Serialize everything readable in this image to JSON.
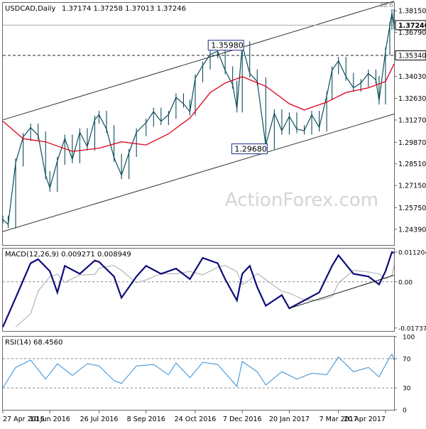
{
  "chart_data": {
    "type": "ohlc",
    "header": {
      "symbol": "USDCAD,Daily",
      "ohlc": "1.37174 1.37258 1.37013 1.37246"
    },
    "watermark": "ActionForex.com",
    "price_axis": {
      "ylim": [
        1.234,
        1.3865
      ],
      "ticks": [
        "1.38150",
        "1.36790",
        "1.35340",
        "1.34030",
        "1.32630",
        "1.31270",
        "1.29870",
        "1.28510",
        "1.27150",
        "1.25750",
        "1.24390"
      ],
      "last_price": "1.37246",
      "level_label": "1.35340",
      "level_value": 1.3534,
      "top_tag": "38.6"
    },
    "annotations": [
      {
        "text": "1.35980",
        "x": "7 Dec 2016",
        "value": 1.3598
      },
      {
        "text": "1.29680",
        "x": "29 Dec 2016",
        "value": 1.2968
      }
    ],
    "channel": {
      "upper": [
        [
          "27 Apr 2016",
          1.3128
        ],
        [
          "28 Apr 2017",
          1.3875
        ]
      ],
      "lower": [
        [
          "27 Apr 2016",
          1.2425
        ],
        [
          "28 Apr 2017",
          1.3165
        ]
      ]
    },
    "x_axis": {
      "ticks": [
        "27 Apr 2016",
        "10 Jun 2016",
        "26 Jul 2016",
        "8 Sep 2016",
        "24 Oct 2016",
        "7 Dec 2016",
        "20 Jan 2017",
        "7 Mar 2017",
        "20 Apr 2017"
      ]
    },
    "price_series": [
      {
        "x": "27 Apr 2016",
        "value": 1.25
      },
      {
        "x": "2 May 2016",
        "value": 1.247
      },
      {
        "x": "9 May 2016",
        "value": 1.286
      },
      {
        "x": "16 May 2016",
        "value": 1.302
      },
      {
        "x": "23 May 2016",
        "value": 1.308
      },
      {
        "x": "30 May 2016",
        "value": 1.303
      },
      {
        "x": "6 Jun 2016",
        "value": 1.278
      },
      {
        "x": "10 Jun 2016",
        "value": 1.27
      },
      {
        "x": "17 Jun 2016",
        "value": 1.287
      },
      {
        "x": "24 Jun 2016",
        "value": 1.301
      },
      {
        "x": "1 Jul 2016",
        "value": 1.288
      },
      {
        "x": "8 Jul 2016",
        "value": 1.305
      },
      {
        "x": "15 Jul 2016",
        "value": 1.296
      },
      {
        "x": "22 Jul 2016",
        "value": 1.313
      },
      {
        "x": "26 Jul 2016",
        "value": 1.316
      },
      {
        "x": "2 Aug 2016",
        "value": 1.307
      },
      {
        "x": "9 Aug 2016",
        "value": 1.289
      },
      {
        "x": "16 Aug 2016",
        "value": 1.278
      },
      {
        "x": "23 Aug 2016",
        "value": 1.292
      },
      {
        "x": "30 Aug 2016",
        "value": 1.305
      },
      {
        "x": "8 Sep 2016",
        "value": 1.311
      },
      {
        "x": "15 Sep 2016",
        "value": 1.318
      },
      {
        "x": "22 Sep 2016",
        "value": 1.312
      },
      {
        "x": "29 Sep 2016",
        "value": 1.316
      },
      {
        "x": "6 Oct 2016",
        "value": 1.327
      },
      {
        "x": "13 Oct 2016",
        "value": 1.323
      },
      {
        "x": "19 Oct 2016",
        "value": 1.318
      },
      {
        "x": "24 Oct 2016",
        "value": 1.339
      },
      {
        "x": "31 Oct 2016",
        "value": 1.347
      },
      {
        "x": "7 Nov 2016",
        "value": 1.354
      },
      {
        "x": "14 Nov 2016",
        "value": 1.356
      },
      {
        "x": "21 Nov 2016",
        "value": 1.344
      },
      {
        "x": "28 Nov 2016",
        "value": 1.335
      },
      {
        "x": "2 Dec 2016",
        "value": 1.32
      },
      {
        "x": "7 Dec 2016",
        "value": 1.3598
      },
      {
        "x": "14 Dec 2016",
        "value": 1.342
      },
      {
        "x": "21 Dec 2016",
        "value": 1.337
      },
      {
        "x": "29 Dec 2016",
        "value": 1.2968
      },
      {
        "x": "6 Jan 2017",
        "value": 1.317
      },
      {
        "x": "13 Jan 2017",
        "value": 1.306
      },
      {
        "x": "20 Jan 2017",
        "value": 1.315
      },
      {
        "x": "27 Jan 2017",
        "value": 1.307
      },
      {
        "x": "3 Feb 2017",
        "value": 1.306
      },
      {
        "x": "10 Feb 2017",
        "value": 1.316
      },
      {
        "x": "17 Feb 2017",
        "value": 1.308
      },
      {
        "x": "24 Feb 2017",
        "value": 1.328
      },
      {
        "x": "1 Mar 2017",
        "value": 1.344
      },
      {
        "x": "7 Mar 2017",
        "value": 1.35
      },
      {
        "x": "14 Mar 2017",
        "value": 1.34
      },
      {
        "x": "21 Mar 2017",
        "value": 1.333
      },
      {
        "x": "28 Mar 2017",
        "value": 1.336
      },
      {
        "x": "4 Apr 2017",
        "value": 1.342
      },
      {
        "x": "11 Apr 2017",
        "value": 1.338
      },
      {
        "x": "14 Apr 2017",
        "value": 1.325
      },
      {
        "x": "20 Apr 2017",
        "value": 1.356
      },
      {
        "x": "24 Apr 2017",
        "value": 1.372
      },
      {
        "x": "26 Apr 2017",
        "value": 1.38
      },
      {
        "x": "28 Apr 2017",
        "value": 1.3725
      }
    ],
    "moving_average": [
      {
        "x": "27 Apr 2016",
        "value": 1.312
      },
      {
        "x": "16 May 2016",
        "value": 1.301
      },
      {
        "x": "6 Jun 2016",
        "value": 1.299
      },
      {
        "x": "1 Jul 2016",
        "value": 1.293
      },
      {
        "x": "26 Jul 2016",
        "value": 1.295
      },
      {
        "x": "16 Aug 2016",
        "value": 1.299
      },
      {
        "x": "8 Sep 2016",
        "value": 1.297
      },
      {
        "x": "29 Sep 2016",
        "value": 1.304
      },
      {
        "x": "19 Oct 2016",
        "value": 1.314
      },
      {
        "x": "7 Nov 2016",
        "value": 1.33
      },
      {
        "x": "21 Nov 2016",
        "value": 1.336
      },
      {
        "x": "7 Dec 2016",
        "value": 1.34
      },
      {
        "x": "29 Dec 2016",
        "value": 1.334
      },
      {
        "x": "20 Jan 2017",
        "value": 1.323
      },
      {
        "x": "3 Feb 2017",
        "value": 1.319
      },
      {
        "x": "24 Feb 2017",
        "value": 1.324
      },
      {
        "x": "14 Mar 2017",
        "value": 1.33
      },
      {
        "x": "4 Apr 2017",
        "value": 1.333
      },
      {
        "x": "20 Apr 2017",
        "value": 1.337
      },
      {
        "x": "28 Apr 2017",
        "value": 1.348
      }
    ],
    "macd": {
      "header": "MACD(12,26,9) 0.009271 0.008949",
      "ylim": [
        -0.0185,
        0.0125
      ],
      "ticks": [
        "0.011204",
        "0.00",
        "-0.017371"
      ],
      "macd_line": [
        {
          "x": "27 Apr 2016",
          "value": -0.017
        },
        {
          "x": "9 May 2016",
          "value": -0.006
        },
        {
          "x": "23 May 2016",
          "value": 0.007
        },
        {
          "x": "30 May 2016",
          "value": 0.0085
        },
        {
          "x": "10 Jun 2016",
          "value": 0.004
        },
        {
          "x": "17 Jun 2016",
          "value": -0.004
        },
        {
          "x": "24 Jun 2016",
          "value": 0.006
        },
        {
          "x": "8 Jul 2016",
          "value": 0.003
        },
        {
          "x": "22 Jul 2016",
          "value": 0.008
        },
        {
          "x": "26 Jul 2016",
          "value": 0.0075
        },
        {
          "x": "9 Aug 2016",
          "value": 0.002
        },
        {
          "x": "16 Aug 2016",
          "value": -0.006
        },
        {
          "x": "30 Aug 2016",
          "value": 0.002
        },
        {
          "x": "8 Sep 2016",
          "value": 0.006
        },
        {
          "x": "22 Sep 2016",
          "value": 0.003
        },
        {
          "x": "6 Oct 2016",
          "value": 0.005
        },
        {
          "x": "19 Oct 2016",
          "value": 0.001
        },
        {
          "x": "31 Oct 2016",
          "value": 0.009
        },
        {
          "x": "14 Nov 2016",
          "value": 0.007
        },
        {
          "x": "21 Nov 2016",
          "value": 0.001
        },
        {
          "x": "2 Dec 2016",
          "value": -0.007
        },
        {
          "x": "7 Dec 2016",
          "value": 0.003
        },
        {
          "x": "14 Dec 2016",
          "value": 0.006
        },
        {
          "x": "21 Dec 2016",
          "value": -0.002
        },
        {
          "x": "29 Dec 2016",
          "value": -0.009
        },
        {
          "x": "13 Jan 2017",
          "value": -0.005
        },
        {
          "x": "20 Jan 2017",
          "value": -0.01
        },
        {
          "x": "3 Feb 2017",
          "value": -0.007
        },
        {
          "x": "17 Feb 2017",
          "value": -0.004
        },
        {
          "x": "1 Mar 2017",
          "value": 0.006
        },
        {
          "x": "7 Mar 2017",
          "value": 0.01
        },
        {
          "x": "21 Mar 2017",
          "value": 0.003
        },
        {
          "x": "4 Apr 2017",
          "value": 0.002
        },
        {
          "x": "14 Apr 2017",
          "value": -0.001
        },
        {
          "x": "20 Apr 2017",
          "value": 0.004
        },
        {
          "x": "26 Apr 2017",
          "value": 0.0112
        },
        {
          "x": "28 Apr 2017",
          "value": 0.0109
        }
      ],
      "trendline": [
        [
          "20 Jan 2017",
          -0.01
        ],
        [
          "28 Apr 2017",
          0.0025
        ]
      ]
    },
    "rsi": {
      "header": "RSI(14) 68.4560",
      "ylim": [
        0,
        100
      ],
      "ticks": [
        "100",
        "70",
        "30",
        "0"
      ],
      "line": [
        {
          "x": "27 Apr 2016",
          "value": 30
        },
        {
          "x": "9 May 2016",
          "value": 58
        },
        {
          "x": "23 May 2016",
          "value": 68
        },
        {
          "x": "6 Jun 2016",
          "value": 42
        },
        {
          "x": "17 Jun 2016",
          "value": 63
        },
        {
          "x": "1 Jul 2016",
          "value": 47
        },
        {
          "x": "15 Jul 2016",
          "value": 63
        },
        {
          "x": "26 Jul 2016",
          "value": 60
        },
        {
          "x": "9 Aug 2016",
          "value": 40
        },
        {
          "x": "16 Aug 2016",
          "value": 36
        },
        {
          "x": "30 Aug 2016",
          "value": 60
        },
        {
          "x": "15 Sep 2016",
          "value": 62
        },
        {
          "x": "29 Sep 2016",
          "value": 48
        },
        {
          "x": "6 Oct 2016",
          "value": 64
        },
        {
          "x": "19 Oct 2016",
          "value": 44
        },
        {
          "x": "31 Oct 2016",
          "value": 65
        },
        {
          "x": "14 Nov 2016",
          "value": 62
        },
        {
          "x": "2 Dec 2016",
          "value": 32
        },
        {
          "x": "7 Dec 2016",
          "value": 66
        },
        {
          "x": "21 Dec 2016",
          "value": 52
        },
        {
          "x": "29 Dec 2016",
          "value": 34
        },
        {
          "x": "13 Jan 2017",
          "value": 52
        },
        {
          "x": "27 Jan 2017",
          "value": 42
        },
        {
          "x": "10 Feb 2017",
          "value": 50
        },
        {
          "x": "24 Feb 2017",
          "value": 48
        },
        {
          "x": "7 Mar 2017",
          "value": 72
        },
        {
          "x": "21 Mar 2017",
          "value": 52
        },
        {
          "x": "4 Apr 2017",
          "value": 58
        },
        {
          "x": "14 Apr 2017",
          "value": 45
        },
        {
          "x": "24 Apr 2017",
          "value": 72
        },
        {
          "x": "26 Apr 2017",
          "value": 76
        },
        {
          "x": "28 Apr 2017",
          "value": 68
        }
      ]
    },
    "colors": {
      "price": "#0a4d5a",
      "moving_average": "#e0001b",
      "macd": "#0b0b7a",
      "signal": "#a8a8a8",
      "rsi": "#2f8ed8",
      "annotation_border": "#1a2a8a"
    }
  }
}
